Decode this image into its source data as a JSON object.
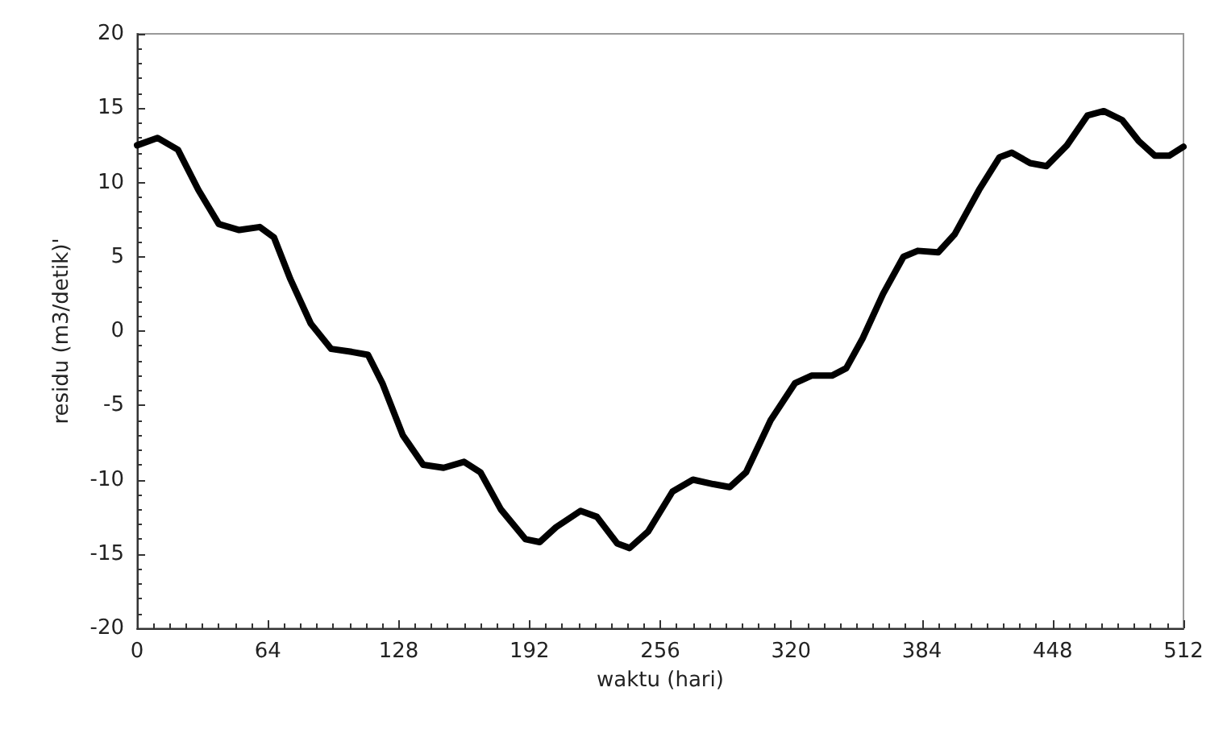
{
  "chart_data": {
    "type": "line",
    "xlabel": "waktu (hari)",
    "ylabel": "residu (m3/detik)'",
    "x": [
      0,
      10,
      20,
      30,
      40,
      50,
      60,
      67,
      75,
      85,
      95,
      105,
      113,
      120,
      130,
      140,
      150,
      160,
      168,
      178,
      190,
      197,
      205,
      217,
      225,
      235,
      241,
      250,
      262,
      272,
      282,
      290,
      298,
      310,
      322,
      330,
      340,
      347,
      355,
      365,
      375,
      382,
      392,
      400,
      412,
      422,
      428,
      437,
      445,
      455,
      465,
      473,
      482,
      490,
      498,
      505,
      512
    ],
    "series": [
      {
        "color": "#000000",
        "values": [
          12.5,
          13.0,
          12.2,
          9.5,
          7.2,
          6.8,
          7.0,
          6.3,
          3.5,
          0.5,
          -1.2,
          -1.4,
          -1.6,
          -3.5,
          -7,
          -9,
          -9.2,
          -8.8,
          -9.5,
          -12,
          -14,
          -14.2,
          -13.2,
          -12.1,
          -12.5,
          -14.3,
          -14.6,
          -13.5,
          -10.8,
          -10,
          -10.3,
          -10.5,
          -9.5,
          -6,
          -3.5,
          -3,
          -3.0,
          -2.5,
          -0.5,
          2.5,
          5,
          5.4,
          5.3,
          6.5,
          9.5,
          11.7,
          12.0,
          11.3,
          11.1,
          12.5,
          14.5,
          14.8,
          14.2,
          12.8,
          11.8,
          11.8,
          12.4
        ]
      }
    ],
    "xlim": [
      0,
      512
    ],
    "xticks": [
      0,
      64,
      128,
      192,
      256,
      320,
      384,
      448,
      512
    ],
    "ylim": [
      -20,
      20
    ],
    "yticks": [
      -20,
      -15,
      -10,
      -5,
      0,
      5,
      10,
      15,
      20
    ],
    "grid": false,
    "marker": "none",
    "line_style": "solid"
  }
}
